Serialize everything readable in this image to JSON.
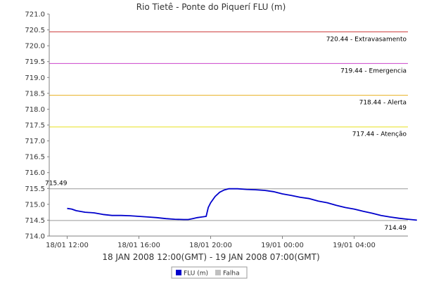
{
  "chart_data": {
    "type": "line",
    "title": "Rio Tietê - Ponte do Piquerí FLU (m)",
    "period_label": "18 JAN 2008 12:00(GMT) - 19 JAN 2008 07:00(GMT)",
    "ylim": [
      714.0,
      721.0
    ],
    "y_ticks": [
      "714.0",
      "714.5",
      "715.0",
      "715.5",
      "716.0",
      "716.5",
      "717.0",
      "717.5",
      "718.0",
      "718.5",
      "719.0",
      "719.5",
      "720.0",
      "720.5",
      "721.0"
    ],
    "x_range": [
      "2008-01-18 11:00",
      "2008-01-19 07:00"
    ],
    "x_ticks": [
      {
        "t": "2008-01-18 12:00",
        "label": "18/01 12:00"
      },
      {
        "t": "2008-01-18 16:00",
        "label": "18/01 16:00"
      },
      {
        "t": "2008-01-18 20:00",
        "label": "18/01 20:00"
      },
      {
        "t": "2008-01-19 00:00",
        "label": "19/01 00:00"
      },
      {
        "t": "2008-01-19 04:00",
        "label": "19/01 04:00"
      }
    ],
    "thresholds": [
      {
        "value": 720.44,
        "label": "720.44 - Extravasamento",
        "color": "#cc3333"
      },
      {
        "value": 719.44,
        "label": "719.44 - Emergencia",
        "color": "#cc44cc"
      },
      {
        "value": 718.44,
        "label": "718.44 - Alerta",
        "color": "#e8b020"
      },
      {
        "value": 717.44,
        "label": "717.44 - Atenção",
        "color": "#e8e020"
      }
    ],
    "reference_lines": [
      {
        "value": 715.49,
        "label": "715.49",
        "color": "#999999",
        "label_side": "left"
      },
      {
        "value": 714.49,
        "label": "714.49",
        "color": "#999999",
        "label_side": "right"
      }
    ],
    "series": [
      {
        "name": "FLU (m)",
        "color": "#0000cc",
        "points": [
          [
            "2008-01-18 12:00",
            714.87
          ],
          [
            "2008-01-18 12:15",
            714.85
          ],
          [
            "2008-01-18 12:30",
            714.8
          ],
          [
            "2008-01-18 13:00",
            714.75
          ],
          [
            "2008-01-18 13:30",
            714.73
          ],
          [
            "2008-01-18 14:00",
            714.68
          ],
          [
            "2008-01-18 14:30",
            714.65
          ],
          [
            "2008-01-18 15:00",
            714.65
          ],
          [
            "2008-01-18 15:30",
            714.64
          ],
          [
            "2008-01-18 16:00",
            714.62
          ],
          [
            "2008-01-18 16:30",
            714.6
          ],
          [
            "2008-01-18 17:00",
            714.58
          ],
          [
            "2008-01-18 17:30",
            714.55
          ],
          [
            "2008-01-18 18:00",
            714.53
          ],
          [
            "2008-01-18 18:30",
            714.52
          ],
          [
            "2008-01-18 18:45",
            714.52
          ],
          [
            "2008-01-18 19:00",
            714.55
          ],
          [
            "2008-01-18 19:15",
            714.58
          ],
          [
            "2008-01-18 19:30",
            714.6
          ],
          [
            "2008-01-18 19:45",
            714.62
          ],
          [
            "2008-01-18 19:52",
            714.9
          ],
          [
            "2008-01-18 20:00",
            715.05
          ],
          [
            "2008-01-18 20:15",
            715.25
          ],
          [
            "2008-01-18 20:30",
            715.38
          ],
          [
            "2008-01-18 20:45",
            715.45
          ],
          [
            "2008-01-18 21:00",
            715.49
          ],
          [
            "2008-01-18 21:30",
            715.49
          ],
          [
            "2008-01-18 22:00",
            715.47
          ],
          [
            "2008-01-18 22:30",
            715.46
          ],
          [
            "2008-01-18 23:00",
            715.44
          ],
          [
            "2008-01-18 23:30",
            715.4
          ],
          [
            "2008-01-19 00:00",
            715.33
          ],
          [
            "2008-01-19 00:30",
            715.28
          ],
          [
            "2008-01-19 01:00",
            715.22
          ],
          [
            "2008-01-19 01:30",
            715.18
          ],
          [
            "2008-01-19 02:00",
            715.1
          ],
          [
            "2008-01-19 02:30",
            715.05
          ],
          [
            "2008-01-19 03:00",
            714.97
          ],
          [
            "2008-01-19 03:30",
            714.9
          ],
          [
            "2008-01-19 04:00",
            714.85
          ],
          [
            "2008-01-19 04:30",
            714.78
          ],
          [
            "2008-01-19 05:00",
            714.72
          ],
          [
            "2008-01-19 05:30",
            714.65
          ],
          [
            "2008-01-19 06:00",
            714.6
          ],
          [
            "2008-01-19 06:30",
            714.56
          ],
          [
            "2008-01-19 07:00",
            714.53
          ],
          [
            "2008-01-19 07:30",
            714.5
          ]
        ]
      }
    ],
    "legend": [
      {
        "label": "FLU (m)",
        "color": "#0000cc"
      },
      {
        "label": "Falha",
        "color": "#c0c0c0"
      }
    ],
    "grid": false,
    "legend_position": "bottom"
  }
}
